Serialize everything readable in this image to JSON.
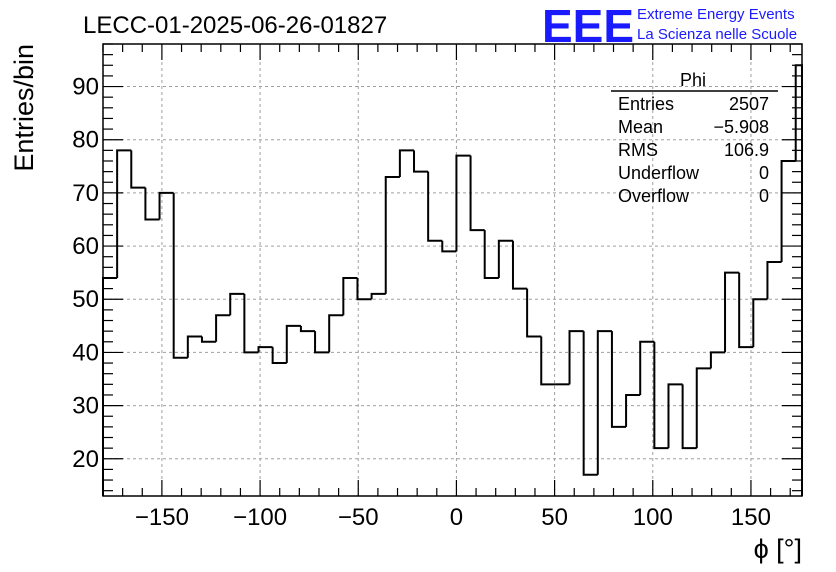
{
  "title": "LECC-01-2025-06-26-01827",
  "logo": {
    "mark": "EEE",
    "line1": "Extreme Energy Events",
    "line2": "La Scienza nelle Scuole",
    "color": "#1a1aff"
  },
  "stats_box": {
    "title": "Phi",
    "rows": [
      {
        "label": "Entries",
        "value": "2507"
      },
      {
        "label": "Mean",
        "value": "−5.908"
      },
      {
        "label": "RMS",
        "value": "106.9"
      },
      {
        "label": "Underflow",
        "value": "0"
      },
      {
        "label": "Overflow",
        "value": "0"
      }
    ]
  },
  "chart_data": {
    "type": "histogram",
    "ylabel": "Entries/bin",
    "xlabel": "ϕ [°]",
    "xlim": [
      -180,
      176
    ],
    "ylim": [
      13,
      98
    ],
    "bin_width": 7.2,
    "x_ticks": [
      -150,
      -100,
      -50,
      0,
      50,
      100,
      150
    ],
    "x_tick_labels": [
      "−150",
      "−100",
      "−50",
      "0",
      "50",
      "100",
      "150"
    ],
    "y_ticks": [
      20,
      30,
      40,
      50,
      60,
      70,
      80,
      90
    ],
    "y_tick_labels": [
      "20",
      "30",
      "40",
      "50",
      "60",
      "70",
      "80",
      "90"
    ],
    "grid": true,
    "line_color": "#000000",
    "values": [
      54,
      78,
      71,
      65,
      70,
      39,
      43,
      42,
      47,
      51,
      40,
      41,
      38,
      45,
      44,
      40,
      47,
      54,
      50,
      51,
      73,
      78,
      74,
      61,
      59,
      77,
      63,
      54,
      61,
      52,
      43,
      34,
      34,
      44,
      17,
      44,
      26,
      32,
      42,
      22,
      34,
      22,
      37,
      40,
      55,
      41,
      50,
      57,
      76,
      94
    ]
  }
}
